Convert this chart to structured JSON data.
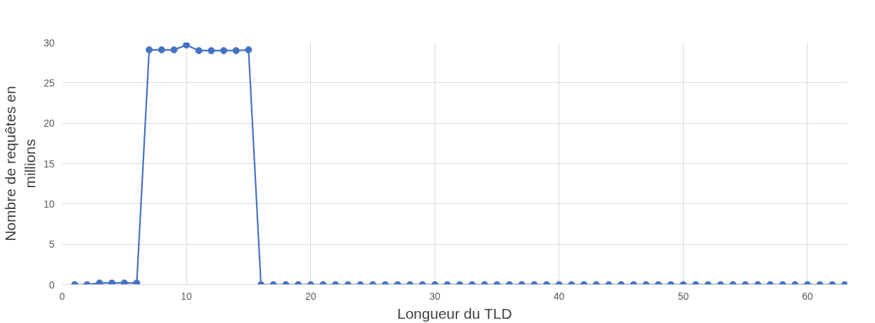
{
  "chart_data": {
    "type": "line",
    "xlabel": "Longueur du TLD",
    "ylabel": "Nombre de requêtes en millions",
    "x": [
      1,
      2,
      3,
      4,
      5,
      6,
      7,
      8,
      9,
      10,
      11,
      12,
      13,
      14,
      15,
      16,
      17,
      18,
      19,
      20,
      21,
      22,
      23,
      24,
      25,
      26,
      27,
      28,
      29,
      30,
      31,
      32,
      33,
      34,
      35,
      36,
      37,
      38,
      39,
      40,
      41,
      42,
      43,
      44,
      45,
      46,
      47,
      48,
      49,
      50,
      51,
      52,
      53,
      54,
      55,
      56,
      57,
      58,
      59,
      60,
      61,
      62,
      63
    ],
    "series": [
      {
        "color": "#4472c4",
        "values": [
          0,
          0,
          0.2,
          0.2,
          0.2,
          0.2,
          29.1,
          29.1,
          29.1,
          29.7,
          29,
          29,
          29,
          29,
          29.1,
          0,
          0,
          0,
          0,
          0,
          0,
          0,
          0,
          0,
          0,
          0,
          0,
          0,
          0,
          0,
          0,
          0,
          0,
          0,
          0,
          0,
          0,
          0,
          0,
          0,
          0,
          0,
          0,
          0,
          0,
          0,
          0,
          0,
          0,
          0,
          0,
          0,
          0,
          0,
          0,
          0,
          0,
          0,
          0,
          0,
          0,
          0,
          0
        ]
      }
    ],
    "xlim": [
      0,
      63.2
    ],
    "ylim": [
      0,
      30
    ],
    "xticks": [
      0,
      10,
      20,
      30,
      40,
      50,
      60
    ],
    "yticks": [
      0,
      5,
      10,
      15,
      20,
      25,
      30
    ],
    "grid": true,
    "marker": "circle",
    "line_style": "solid"
  }
}
